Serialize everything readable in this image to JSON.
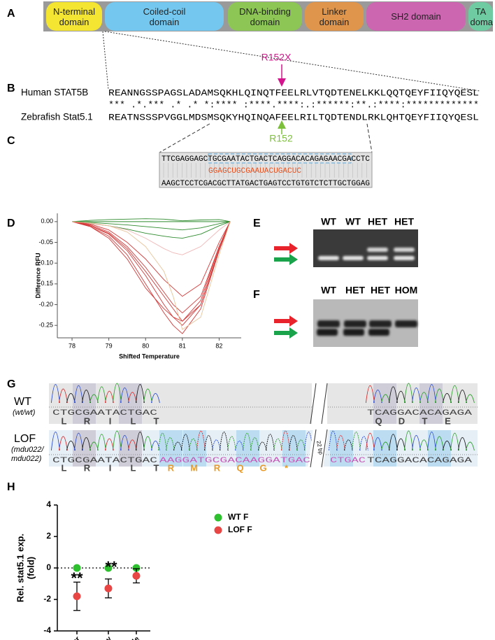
{
  "panels": {
    "a": {
      "label": "A",
      "domains": [
        "N-terminal domain",
        "Coiled-coil domain",
        "DNA-binding domain",
        "Linker domain",
        "SH2 domain",
        "TA domain"
      ]
    },
    "b": {
      "label": "B",
      "human_name": "Human STAT5B",
      "human_seq": "REANNGSSPAGSLADAMSQKHLQINQTFEELRLVTQDTENELKKLQQTQEYFIIQYQESL",
      "conservation": "*** .*.*** .* .* *:**** :****.****:.:******:**.:****:*************",
      "zebrafish_name": "Zebrafish Stat5.1",
      "zebrafish_seq": "REATNSSSPVGGLMDSMSQKYHQINQAFEELRILTQDTENDLRKLQHTQEYFIIQYQESL",
      "mutation": "R152X",
      "residue": "R152"
    },
    "c": {
      "label": "C",
      "top": "TTCGAGGAGCTGCGAATACTGACTCAGGACACAGAGAACGACCTC",
      "guide": "GGAGCUGCGAAUACUGACUC",
      "bottom": "AAGCTCCTCGACGCTTATGACTGAGTCCTGTGTCTCTTGCTGGAG"
    },
    "d": {
      "label": "D"
    },
    "e": {
      "label": "E",
      "lanes": [
        "WT",
        "WT",
        "HET",
        "HET"
      ]
    },
    "f": {
      "label": "F",
      "lanes": [
        "WT",
        "HET",
        "HET",
        "HOM"
      ]
    },
    "g": {
      "label": "G",
      "wt": {
        "name": "WT",
        "genotype": "(wt/wt)",
        "bases_left": "CTGCGAATACTGAC",
        "bases_right": "TCAGGACACAGAGA",
        "aa_left": [
          "L",
          "R",
          "I",
          "L",
          "T"
        ],
        "aa_right": [
          "Q",
          "D",
          "T",
          "E"
        ]
      },
      "lof": {
        "name": "LOF",
        "genotype": "(mdu022/ mdu022)",
        "bases_left": "CTGCGAATACTGAC",
        "bases_insert": "AAGGATGCGACAAGGATGAC",
        "gap": "22 bp",
        "bases_insert2": "CTGAC",
        "bases_right": "TCAGGACACAGAGA",
        "aa_left": [
          "L",
          "R",
          "I",
          "L",
          "T"
        ],
        "aa_insert": [
          "R",
          "M",
          "R",
          "Q",
          "G",
          "*"
        ]
      }
    },
    "h": {
      "label": "H"
    }
  },
  "chart_data": [
    {
      "type": "line",
      "xlabel": "Shifted Temperature",
      "ylabel": "Difference RFU",
      "x": [
        78,
        78.5,
        79,
        79.5,
        80,
        80.5,
        80.75,
        81,
        81.5,
        82,
        82.3
      ],
      "xlim": [
        77.6,
        82.6
      ],
      "xticks": [
        78,
        79,
        80,
        81,
        82
      ],
      "ylim": [
        -0.28,
        0.02
      ],
      "yticks": [
        {
          "value": 0,
          "label": "0.00"
        },
        -0.05,
        {
          "value": -0.1,
          "label": "-0.10"
        },
        -0.15,
        {
          "value": -0.2,
          "label": "-0.20"
        },
        -0.25
      ],
      "series": [
        {
          "color": "#2e8b2e",
          "values": [
            0,
            0,
            0,
            0,
            0,
            0,
            0,
            0,
            0,
            0,
            0
          ]
        },
        {
          "color": "#2e8b2e",
          "values": [
            0,
            -0.002,
            -0.005,
            -0.008,
            -0.012,
            -0.016,
            -0.018,
            -0.02,
            -0.015,
            -0.005,
            0
          ]
        },
        {
          "color": "#2e8b2e",
          "values": [
            0,
            -0.005,
            -0.01,
            -0.018,
            -0.028,
            -0.035,
            -0.038,
            -0.04,
            -0.03,
            -0.01,
            0
          ]
        },
        {
          "color": "#2e8b2e",
          "values": [
            0,
            0.003,
            0.005,
            0.006,
            0.007,
            0.006,
            0.004,
            0.002,
            0.004,
            0.005,
            0
          ]
        },
        {
          "color": "#f0b8b8",
          "values": [
            0,
            -0.005,
            -0.01,
            -0.02,
            -0.04,
            -0.065,
            -0.075,
            -0.08,
            -0.06,
            -0.02,
            0
          ]
        },
        {
          "color": "#d43a3a",
          "values": [
            0,
            -0.01,
            -0.03,
            -0.07,
            -0.13,
            -0.2,
            -0.23,
            -0.25,
            -0.2,
            -0.07,
            0
          ]
        },
        {
          "color": "#d43a3a",
          "values": [
            0,
            -0.012,
            -0.035,
            -0.08,
            -0.15,
            -0.22,
            -0.25,
            -0.27,
            -0.21,
            -0.07,
            0
          ]
        },
        {
          "color": "#d43a3a",
          "values": [
            0,
            -0.008,
            -0.025,
            -0.06,
            -0.11,
            -0.17,
            -0.2,
            -0.22,
            -0.18,
            -0.06,
            0
          ]
        },
        {
          "color": "#d43a3a",
          "values": [
            0,
            -0.01,
            -0.028,
            -0.065,
            -0.12,
            -0.18,
            -0.21,
            -0.24,
            -0.2,
            -0.065,
            0
          ]
        },
        {
          "color": "#d43a3a",
          "values": [
            0,
            -0.006,
            -0.02,
            -0.05,
            -0.09,
            -0.14,
            -0.16,
            -0.18,
            -0.15,
            -0.05,
            0
          ]
        },
        {
          "color": "#d43a3a",
          "values": [
            0,
            -0.012,
            -0.04,
            -0.09,
            -0.16,
            -0.21,
            -0.23,
            -0.24,
            -0.19,
            -0.06,
            0
          ]
        },
        {
          "color": "#e8c49a",
          "values": [
            0,
            -0.003,
            -0.01,
            -0.025,
            -0.06,
            -0.12,
            -0.18,
            -0.26,
            -0.23,
            -0.08,
            0
          ]
        }
      ]
    },
    {
      "type": "scatter",
      "ylabel": [
        "Rel. stat5.1 exp.",
        "(fold)"
      ],
      "categories": [
        "Liver",
        "Kidney",
        "Muscle"
      ],
      "ylim": [
        -4,
        4
      ],
      "yticks": [
        -4,
        -2,
        0,
        2,
        4
      ],
      "hline": 0,
      "legend": "upper right",
      "series": [
        {
          "name": "WT F",
          "color": "#2fc02f",
          "values": [
            0,
            0,
            0
          ]
        },
        {
          "name": "LOF F",
          "color": "#e84545",
          "values": [
            -1.8,
            -1.3,
            -0.5
          ],
          "errors": [
            0.9,
            0.6,
            0.45
          ]
        }
      ],
      "annotations": [
        "**",
        "**"
      ]
    }
  ]
}
